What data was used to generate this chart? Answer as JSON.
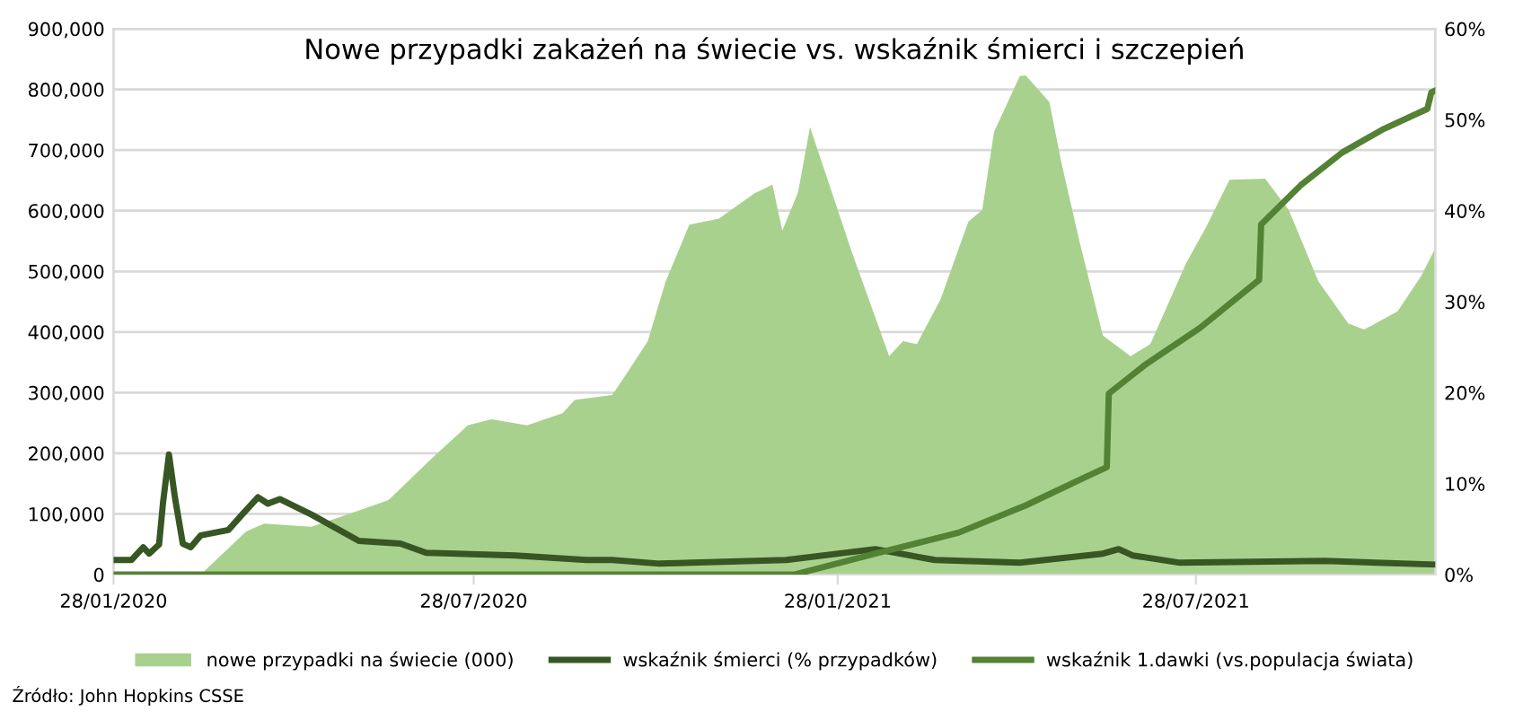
{
  "chart_data": {
    "type": "area",
    "title": "Nowe przypadki zakażeń na świecie vs. wskaźnik śmierci i szczepień",
    "annotations": [
      "Źródło: John Hopkins CSSE"
    ],
    "xlim": [
      "2020-01-28",
      "2021-11-26"
    ],
    "xticks": [
      {
        "value": "2020-01-28",
        "label": "28/01/2020"
      },
      {
        "value": "2020-07-28",
        "label": "28/07/2020"
      },
      {
        "value": "2021-01-28",
        "label": "28/01/2021"
      },
      {
        "value": "2021-07-28",
        "label": "28/07/2021"
      }
    ],
    "ylim": [
      0,
      900000
    ],
    "yticks": [
      {
        "value": 0,
        "label": "0"
      },
      {
        "value": 100000,
        "label": "100,000"
      },
      {
        "value": 200000,
        "label": "200,000"
      },
      {
        "value": 300000,
        "label": "300,000"
      },
      {
        "value": 400000,
        "label": "400,000"
      },
      {
        "value": 500000,
        "label": "500,000"
      },
      {
        "value": 600000,
        "label": "600,000"
      },
      {
        "value": 700000,
        "label": "700,000"
      },
      {
        "value": 800000,
        "label": "800,000"
      },
      {
        "value": 900000,
        "label": "900,000"
      }
    ],
    "y2lim": [
      0,
      60
    ],
    "y2ticks": [
      {
        "value": 0,
        "label": "0%"
      },
      {
        "value": 10,
        "label": "10%"
      },
      {
        "value": 20,
        "label": "20%"
      },
      {
        "value": 30,
        "label": "30%"
      },
      {
        "value": 40,
        "label": "40%"
      },
      {
        "value": 50,
        "label": "50%"
      },
      {
        "value": 60,
        "label": "60%"
      }
    ],
    "grid": "y",
    "legend": "bottom",
    "series": [
      {
        "name": "nowe przypadki na świecie (000)",
        "color": "#a9d18e",
        "x": [
          "2020-01-28",
          "2020-03-12",
          "2020-04-04",
          "2020-04-13",
          "2020-05-07",
          "2020-05-25",
          "2020-06-15",
          "2020-07-07",
          "2020-07-25",
          "2020-08-06",
          "2020-08-24",
          "2020-09-11",
          "2020-09-17",
          "2020-10-06",
          "2020-10-12",
          "2020-10-24",
          "2020-11-02",
          "2020-11-14",
          "2020-11-29",
          "2020-12-05",
          "2020-12-17",
          "2020-12-26",
          "2020-12-31",
          "2021-01-08",
          "2021-01-14",
          "2021-01-26",
          "2021-02-04",
          "2021-02-16",
          "2021-02-23",
          "2021-03-02",
          "2021-03-09",
          "2021-03-21",
          "2021-04-04",
          "2021-04-11",
          "2021-04-17",
          "2021-04-30",
          "2021-05-03",
          "2021-05-15",
          "2021-05-21",
          "2021-05-30",
          "2021-06-11",
          "2021-06-25",
          "2021-07-05",
          "2021-07-23",
          "2021-08-02",
          "2021-08-14",
          "2021-09-01",
          "2021-09-13",
          "2021-09-28",
          "2021-10-13",
          "2021-10-21",
          "2021-11-07",
          "2021-11-19",
          "2021-11-26"
        ],
        "values": [
          0,
          0,
          71000,
          84000,
          79000,
          99000,
          123000,
          192000,
          246000,
          256000,
          246000,
          266000,
          288000,
          296000,
          325000,
          385000,
          483000,
          577000,
          587000,
          601000,
          629000,
          643000,
          567000,
          631000,
          738000,
          621000,
          533000,
          424000,
          360000,
          385000,
          380000,
          454000,
          582000,
          601000,
          730000,
          822000,
          823000,
          779000,
          680000,
          552000,
          394000,
          360000,
          380000,
          513000,
          572000,
          651000,
          653000,
          601000,
          483000,
          414000,
          404000,
          434000,
          493000,
          538000
        ]
      },
      {
        "name": "wskaźnik śmierci (% przypadków)",
        "type": "line",
        "axis": "y2",
        "color": "#375623",
        "x": [
          "2020-01-28",
          "2020-02-06",
          "2020-02-12",
          "2020-02-15",
          "2020-02-20",
          "2020-02-22",
          "2020-02-25",
          "2020-02-28",
          "2020-03-03",
          "2020-03-07",
          "2020-03-12",
          "2020-03-26",
          "2020-04-02",
          "2020-04-10",
          "2020-04-15",
          "2020-04-21",
          "2020-05-07",
          "2020-05-31",
          "2020-06-21",
          "2020-07-04",
          "2020-08-18",
          "2020-09-23",
          "2020-10-06",
          "2020-10-30",
          "2021-01-02",
          "2021-02-16",
          "2021-03-18",
          "2021-04-30",
          "2021-06-11",
          "2021-06-19",
          "2021-06-26",
          "2021-07-20",
          "2021-10-01",
          "2021-11-26"
        ],
        "values": [
          1.6,
          1.6,
          3.0,
          2.3,
          3.3,
          7.9,
          13.2,
          8.5,
          3.4,
          3.0,
          4.3,
          4.9,
          6.6,
          8.5,
          7.8,
          8.3,
          6.6,
          3.7,
          3.4,
          2.4,
          2.1,
          1.6,
          1.6,
          1.2,
          1.6,
          2.8,
          1.6,
          1.3,
          2.3,
          2.8,
          2.1,
          1.3,
          1.5,
          1.1
        ]
      },
      {
        "name": "wskaźnik 1.dawki (vs.populacja świata)",
        "type": "line",
        "axis": "y2",
        "color": "#548235",
        "x": [
          "2020-01-28",
          "2021-01-06",
          "2021-02-16",
          "2021-03-30",
          "2021-05-03",
          "2021-06-02",
          "2021-06-13",
          "2021-06-14",
          "2021-07-02",
          "2021-07-30",
          "2021-08-29",
          "2021-08-30",
          "2021-09-19",
          "2021-10-10",
          "2021-10-31",
          "2021-11-22",
          "2021-11-24",
          "2021-11-26"
        ],
        "values": [
          0,
          0,
          2.3,
          4.6,
          7.6,
          10.7,
          11.8,
          19.9,
          23.0,
          27.1,
          32.4,
          38.5,
          42.8,
          46.4,
          49.0,
          51.2,
          53.0,
          53.2
        ]
      }
    ]
  }
}
